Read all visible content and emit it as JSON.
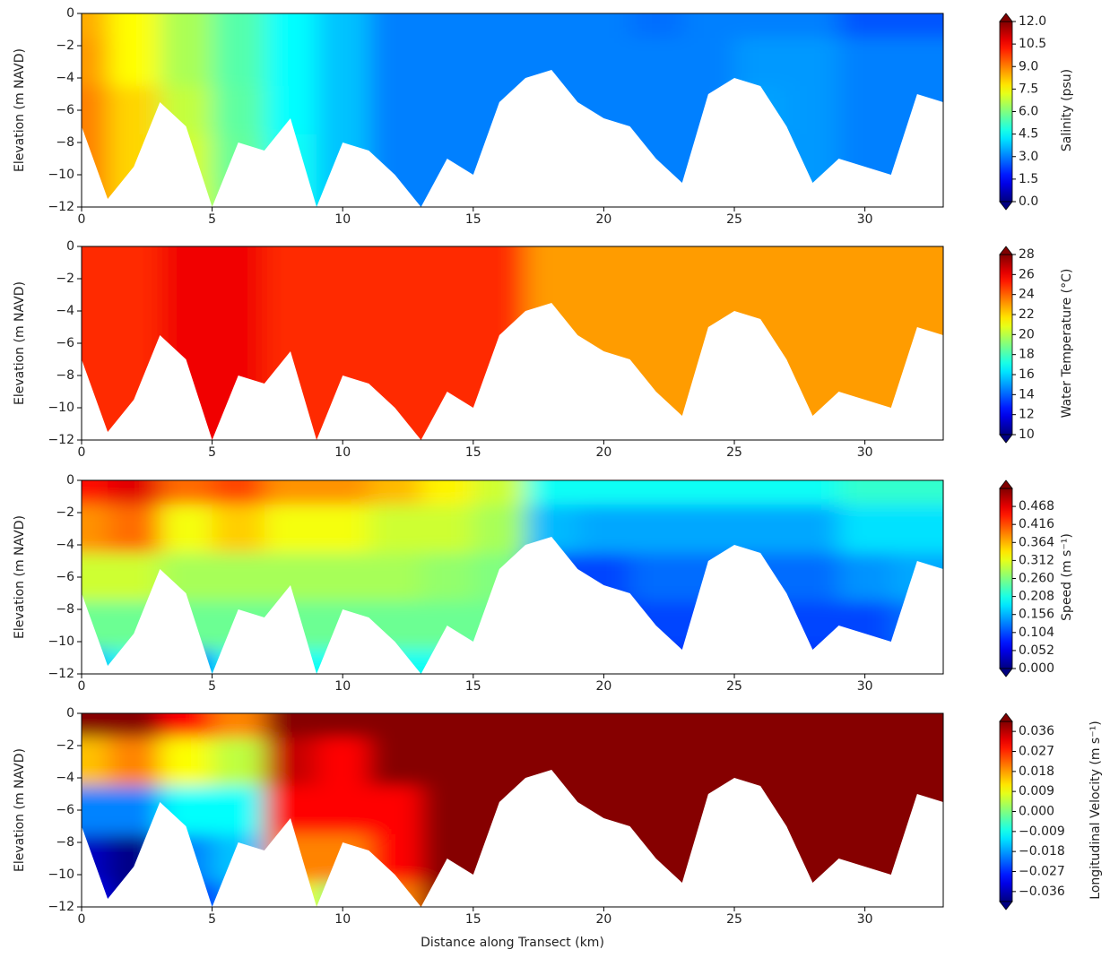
{
  "chart_data": [
    {
      "type": "contour",
      "ylabel": "Elevation (m NAVD)",
      "colorbar_label": "Salinity (psu)",
      "xlim": [
        0,
        33
      ],
      "ylim": [
        -12,
        0
      ],
      "xticks": [
        0,
        5,
        10,
        15,
        20,
        25,
        30
      ],
      "yticks": [
        0,
        {
          "value": -2,
          "label": "−2"
        },
        {
          "value": -4,
          "label": "−4"
        },
        {
          "value": -6,
          "label": "−6"
        },
        {
          "value": -8,
          "label": "−8"
        },
        {
          "value": -10,
          "label": "−10"
        },
        {
          "value": -12,
          "label": "−12"
        }
      ],
      "colormap": "jet",
      "clim": [
        0,
        12
      ],
      "cticks": [
        {
          "value": 0,
          "label": "0.0"
        },
        1.5,
        {
          "value": 3,
          "label": "3.0"
        },
        4.5,
        {
          "value": 6,
          "label": "6.0"
        },
        7.5,
        {
          "value": 9,
          "label": "9.0"
        },
        10.5,
        {
          "value": 12,
          "label": "12.0"
        }
      ],
      "x": [
        0,
        2,
        4,
        6,
        8,
        10,
        12,
        14,
        16,
        18,
        20,
        22,
        24,
        26,
        28,
        30,
        32
      ],
      "y": [
        0,
        -3,
        -6,
        -9,
        -12
      ],
      "z": [
        [
          8.5,
          7.5,
          6.5,
          5.5,
          4.5,
          3.8,
          3.0,
          3.0,
          3.0,
          3.0,
          3.0,
          2.8,
          3.0,
          3.0,
          3.0,
          2.5,
          2.5
        ],
        [
          8.7,
          7.5,
          6.5,
          5.5,
          4.5,
          3.8,
          3.0,
          3.0,
          3.0,
          3.0,
          3.0,
          3.0,
          3.0,
          3.3,
          3.3,
          3.0,
          3.0
        ],
        [
          9.0,
          8.0,
          6.8,
          5.6,
          4.5,
          3.8,
          3.0,
          3.0,
          3.0,
          3.0,
          3.0,
          3.0,
          3.0,
          3.4,
          3.3,
          3.0,
          3.0
        ],
        [
          9.0,
          8.0,
          7.0,
          5.7,
          4.6,
          3.8,
          3.0,
          3.0,
          3.0,
          3.0,
          3.0,
          3.0,
          3.0,
          3.3,
          3.3,
          3.0,
          3.0
        ],
        [
          9.0,
          8.0,
          7.0,
          5.8,
          4.6,
          3.8,
          3.0,
          3.0,
          3.0,
          3.0,
          3.0,
          3.0,
          3.0,
          3.3,
          3.3,
          3.0,
          3.0
        ]
      ],
      "bottom_x": [
        0,
        1,
        2,
        3,
        4,
        5,
        6,
        7,
        8,
        9,
        10,
        11,
        12,
        13,
        14,
        15,
        16,
        17,
        18,
        19,
        20,
        21,
        22,
        23,
        24,
        25,
        26,
        27,
        28,
        29,
        30,
        31,
        32,
        33
      ],
      "bottom_y": [
        -7,
        -11.5,
        -9.5,
        -5.5,
        -7,
        -12,
        -8,
        -8.5,
        -6.5,
        -12,
        -8,
        -8.5,
        -10,
        -12,
        -9,
        -10,
        -5.5,
        -4,
        -3.5,
        -5.5,
        -6.5,
        -7,
        -9,
        -10.5,
        -5,
        -4,
        -4.5,
        -7,
        -10.5,
        -9,
        -9.5,
        -10,
        -5,
        -5.5
      ]
    },
    {
      "type": "contour",
      "ylabel": "Elevation (m NAVD)",
      "colorbar_label": "Water Temperature (°C)",
      "xlim": [
        0,
        33
      ],
      "ylim": [
        -12,
        0
      ],
      "xticks": [
        0,
        5,
        10,
        15,
        20,
        25,
        30
      ],
      "yticks": [
        0,
        {
          "value": -2,
          "label": "−2"
        },
        {
          "value": -4,
          "label": "−4"
        },
        {
          "value": -6,
          "label": "−6"
        },
        {
          "value": -8,
          "label": "−8"
        },
        {
          "value": -10,
          "label": "−10"
        },
        {
          "value": -12,
          "label": "−12"
        }
      ],
      "colormap": "jet",
      "clim": [
        10,
        28
      ],
      "cticks": [
        10,
        12,
        14,
        16,
        18,
        20,
        22,
        24,
        26,
        28
      ],
      "x": [
        0,
        2,
        4,
        6,
        8,
        10,
        12,
        14,
        16,
        18,
        20,
        22,
        24,
        26,
        28,
        30,
        32
      ],
      "y": [
        0,
        -3,
        -6,
        -9,
        -12
      ],
      "z": [
        [
          25,
          25,
          26,
          26,
          25,
          25,
          25,
          25,
          25,
          23,
          23,
          23,
          23,
          23,
          23,
          23,
          23
        ],
        [
          25,
          25,
          26,
          26,
          25,
          25,
          25,
          25,
          25,
          23,
          23,
          23,
          23,
          23,
          23,
          23,
          23
        ],
        [
          25,
          25,
          26,
          26,
          25,
          25,
          25,
          25,
          25,
          23,
          23,
          23,
          23,
          23,
          23,
          23,
          23
        ],
        [
          25,
          25,
          26,
          26,
          25,
          25,
          25,
          25,
          25,
          23,
          23,
          23,
          23,
          23,
          23,
          23,
          23
        ],
        [
          25,
          25,
          26,
          26,
          25,
          25,
          25,
          25,
          25,
          23,
          23,
          23,
          23,
          23,
          23,
          23,
          23
        ]
      ],
      "bottom_x": [
        0,
        1,
        2,
        3,
        4,
        5,
        6,
        7,
        8,
        9,
        10,
        11,
        12,
        13,
        14,
        15,
        16,
        17,
        18,
        19,
        20,
        21,
        22,
        23,
        24,
        25,
        26,
        27,
        28,
        29,
        30,
        31,
        32,
        33
      ],
      "bottom_y": [
        -7,
        -11.5,
        -9.5,
        -5.5,
        -7,
        -12,
        -8,
        -8.5,
        -6.5,
        -12,
        -8,
        -8.5,
        -10,
        -12,
        -9,
        -10,
        -5.5,
        -4,
        -3.5,
        -5.5,
        -6.5,
        -7,
        -9,
        -10.5,
        -5,
        -4,
        -4.5,
        -7,
        -10.5,
        -9,
        -9.5,
        -10,
        -5,
        -5.5
      ]
    },
    {
      "type": "contour",
      "ylabel": "Elevation (m NAVD)",
      "colorbar_label": "Speed (m s⁻¹)",
      "xlim": [
        0,
        33
      ],
      "ylim": [
        -12,
        0
      ],
      "xticks": [
        0,
        5,
        10,
        15,
        20,
        25,
        30
      ],
      "yticks": [
        0,
        {
          "value": -2,
          "label": "−2"
        },
        {
          "value": -4,
          "label": "−4"
        },
        {
          "value": -6,
          "label": "−6"
        },
        {
          "value": -8,
          "label": "−8"
        },
        {
          "value": -10,
          "label": "−10"
        },
        {
          "value": -12,
          "label": "−12"
        }
      ],
      "colormap": "jet",
      "clim": [
        0,
        0.52
      ],
      "cticks": [
        {
          "value": 0,
          "label": "0.000"
        },
        0.052,
        0.104,
        0.156,
        0.208,
        {
          "value": 0.26,
          "label": "0.260"
        },
        0.312,
        0.364,
        0.416,
        0.468
      ],
      "x": [
        0,
        2,
        4,
        6,
        8,
        10,
        12,
        14,
        16,
        18,
        20,
        22,
        24,
        26,
        28,
        30,
        32
      ],
      "y": [
        0,
        -3,
        -6,
        -9,
        -12
      ],
      "z": [
        [
          0.45,
          0.47,
          0.4,
          0.42,
          0.38,
          0.38,
          0.36,
          0.33,
          0.3,
          0.2,
          0.2,
          0.2,
          0.2,
          0.2,
          0.2,
          0.22,
          0.22
        ],
        [
          0.38,
          0.4,
          0.32,
          0.35,
          0.32,
          0.32,
          0.3,
          0.3,
          0.28,
          0.16,
          0.15,
          0.15,
          0.15,
          0.15,
          0.15,
          0.18,
          0.18
        ],
        [
          0.3,
          0.3,
          0.28,
          0.28,
          0.28,
          0.28,
          0.28,
          0.27,
          0.26,
          0.1,
          0.1,
          0.12,
          0.12,
          0.12,
          0.12,
          0.14,
          0.15
        ],
        [
          0.25,
          0.25,
          0.25,
          0.25,
          0.25,
          0.25,
          0.25,
          0.25,
          0.25,
          0.1,
          0.08,
          0.1,
          0.1,
          0.1,
          0.1,
          0.1,
          0.12
        ],
        [
          0.15,
          0.2,
          0.1,
          0.2,
          0.2,
          0.2,
          0.2,
          0.2,
          0.2,
          0.1,
          0.08,
          0.08,
          0.08,
          0.08,
          0.08,
          0.08,
          0.1
        ]
      ],
      "bottom_x": [
        0,
        1,
        2,
        3,
        4,
        5,
        6,
        7,
        8,
        9,
        10,
        11,
        12,
        13,
        14,
        15,
        16,
        17,
        18,
        19,
        20,
        21,
        22,
        23,
        24,
        25,
        26,
        27,
        28,
        29,
        30,
        31,
        32,
        33
      ],
      "bottom_y": [
        -7,
        -11.5,
        -9.5,
        -5.5,
        -7,
        -12,
        -8,
        -8.5,
        -6.5,
        -12,
        -8,
        -8.5,
        -10,
        -12,
        -9,
        -10,
        -5.5,
        -4,
        -3.5,
        -5.5,
        -6.5,
        -7,
        -9,
        -10.5,
        -5,
        -4,
        -4.5,
        -7,
        -10.5,
        -9,
        -9.5,
        -10,
        -5,
        -5.5
      ]
    },
    {
      "type": "contour",
      "ylabel": "Elevation (m NAVD)",
      "colorbar_label": "Longitudinal Velocity (m s⁻¹)",
      "xlabel": "Distance along Transect (km)",
      "xlim": [
        0,
        33
      ],
      "ylim": [
        -12,
        0
      ],
      "xticks": [
        0,
        5,
        10,
        15,
        20,
        25,
        30
      ],
      "yticks": [
        0,
        {
          "value": -2,
          "label": "−2"
        },
        {
          "value": -4,
          "label": "−4"
        },
        {
          "value": -6,
          "label": "−6"
        },
        {
          "value": -8,
          "label": "−8"
        },
        {
          "value": -10,
          "label": "−10"
        },
        {
          "value": -12,
          "label": "−12"
        }
      ],
      "colormap": "jet",
      "clim": [
        -0.0405,
        0.0405
      ],
      "cticks": [
        {
          "value": -0.036,
          "label": "−0.036"
        },
        {
          "value": -0.027,
          "label": "−0.027"
        },
        {
          "value": -0.018,
          "label": "−0.018"
        },
        {
          "value": -0.009,
          "label": "−0.009"
        },
        {
          "value": 0,
          "label": "0.000"
        },
        0.009,
        0.018,
        0.027,
        0.036
      ],
      "x": [
        0,
        2,
        4,
        6,
        8,
        10,
        12,
        14,
        16,
        18,
        20,
        22,
        24,
        26,
        28,
        30,
        32
      ],
      "y": [
        0,
        -3,
        -6,
        -9,
        -12
      ],
      "z": [
        [
          0.04,
          0.04,
          0.03,
          0.02,
          0.04,
          0.04,
          0.04,
          0.04,
          0.04,
          0.04,
          0.04,
          0.04,
          0.04,
          0.04,
          0.04,
          0.04,
          0.04
        ],
        [
          0.015,
          0.02,
          0.01,
          0.005,
          0.035,
          0.03,
          0.04,
          0.04,
          0.04,
          0.04,
          0.04,
          0.04,
          0.04,
          0.04,
          0.04,
          0.04,
          0.04
        ],
        [
          -0.02,
          -0.02,
          -0.01,
          -0.01,
          0.03,
          0.03,
          0.03,
          0.04,
          0.04,
          0.04,
          0.04,
          0.04,
          0.04,
          0.04,
          0.04,
          0.04,
          0.04
        ],
        [
          -0.035,
          -0.04,
          -0.02,
          -0.015,
          0.02,
          0.02,
          0.03,
          0.04,
          0.04,
          0.04,
          0.04,
          0.04,
          0.04,
          0.04,
          0.04,
          0.04,
          0.04
        ],
        [
          -0.03,
          -0.04,
          -0.03,
          -0.02,
          0.01,
          0.0,
          0.02,
          0.04,
          0.04,
          0.04,
          0.04,
          0.04,
          0.04,
          0.04,
          0.04,
          0.04,
          0.04
        ]
      ],
      "bottom_x": [
        0,
        1,
        2,
        3,
        4,
        5,
        6,
        7,
        8,
        9,
        10,
        11,
        12,
        13,
        14,
        15,
        16,
        17,
        18,
        19,
        20,
        21,
        22,
        23,
        24,
        25,
        26,
        27,
        28,
        29,
        30,
        31,
        32,
        33
      ],
      "bottom_y": [
        -7,
        -11.5,
        -9.5,
        -5.5,
        -7,
        -12,
        -8,
        -8.5,
        -6.5,
        -12,
        -8,
        -8.5,
        -10,
        -12,
        -9,
        -10,
        -5.5,
        -4,
        -3.5,
        -5.5,
        -6.5,
        -7,
        -9,
        -10.5,
        -5,
        -4,
        -4.5,
        -7,
        -10.5,
        -9,
        -9.5,
        -10,
        -5,
        -5.5
      ]
    }
  ]
}
